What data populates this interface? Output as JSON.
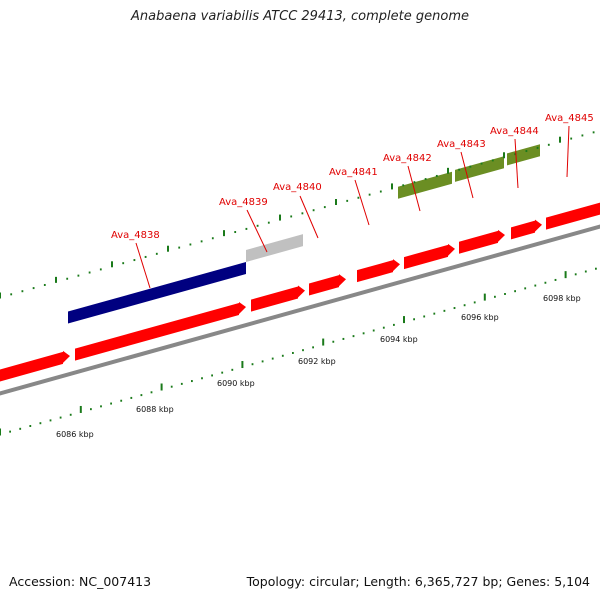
{
  "title": "Anabaena variabilis ATCC 29413, complete genome",
  "footer": {
    "accession": "Accession: NC_007413",
    "summary": "Topology: circular; Length: 6,365,727 bp; Genes: 5,104"
  },
  "colors": {
    "cds": "#ff0000",
    "backbone": "#888888",
    "feature_navy": "#000080",
    "feature_grey": "#c0c0c0",
    "feature_olive": "#6b8e23",
    "tick": "#1a7a1a",
    "label": "#e00000"
  },
  "scale_labels": [
    "6086 kbp",
    "6088 kbp",
    "6090 kbp",
    "6092 kbp",
    "6094 kbp",
    "6096 kbp",
    "6098 kbp"
  ],
  "gene_labels": [
    "Ava_4838",
    "Ava_4839",
    "Ava_4840",
    "Ava_4841",
    "Ava_4842",
    "Ava_4843",
    "Ava_4844",
    "Ava_4845"
  ]
}
